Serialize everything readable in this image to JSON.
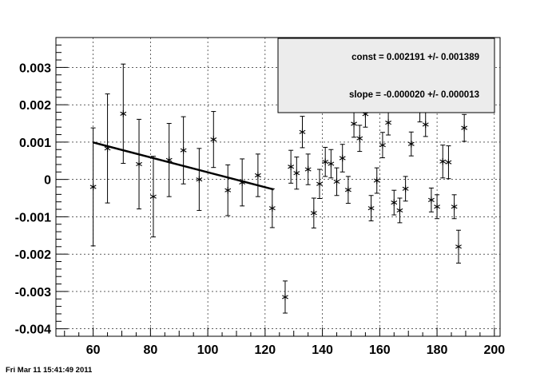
{
  "timestamp": "Fri Mar 11 15:41:49 2011",
  "stats": {
    "const_line": "const = 0.002191 +/- 0.001389",
    "slope_line": "slope = -0.000020 +/- 0.000013"
  },
  "colors": {
    "frame": "#000000",
    "stats_box_fill": "#ececec",
    "grid": "#000000",
    "fit_line": "#000000"
  },
  "chart_data": {
    "type": "scatter",
    "title": "",
    "xlabel": "",
    "ylabel": "",
    "xlim": [
      47,
      202
    ],
    "ylim": [
      -0.0042,
      0.0038
    ],
    "grid": true,
    "marker": "asterisk",
    "error_bars": true,
    "x_ticks": [
      60,
      80,
      100,
      120,
      140,
      160,
      180,
      200
    ],
    "x_tick_labels": [
      "60",
      "80",
      "100",
      "120",
      "140",
      "160",
      "180",
      "200"
    ],
    "y_ticks": [
      0.003,
      0.002,
      0.001,
      0,
      -0.001,
      -0.002,
      -0.003,
      -0.004
    ],
    "y_tick_labels": [
      "0.003",
      "0.002",
      "0.001",
      "0",
      "-0.001",
      "-0.002",
      "-0.003",
      "-0.004"
    ],
    "points": [
      {
        "x": 60,
        "y": -0.0002,
        "err": 0.00158
      },
      {
        "x": 65,
        "y": 0.00083,
        "err": 0.00146
      },
      {
        "x": 70.5,
        "y": 0.00176,
        "err": 0.00133
      },
      {
        "x": 76,
        "y": 0.00041,
        "err": 0.0012
      },
      {
        "x": 81,
        "y": -0.00046,
        "err": 0.00108
      },
      {
        "x": 86.5,
        "y": 0.00052,
        "err": 0.00098
      },
      {
        "x": 91.5,
        "y": 0.00078,
        "err": 0.0009
      },
      {
        "x": 97,
        "y": 0.0,
        "err": 0.00083
      },
      {
        "x": 102,
        "y": 0.00107,
        "err": 0.00075
      },
      {
        "x": 107,
        "y": -0.00029,
        "err": 0.00068
      },
      {
        "x": 112,
        "y": -8e-05,
        "err": 0.00063
      },
      {
        "x": 117.5,
        "y": 0.00011,
        "err": 0.00057
      },
      {
        "x": 122.5,
        "y": -0.00077,
        "err": 0.00052
      },
      {
        "x": 127,
        "y": -0.00315,
        "err": 0.00043
      },
      {
        "x": 129,
        "y": 0.00034,
        "err": 0.00044
      },
      {
        "x": 131,
        "y": 0.00017,
        "err": 0.00043
      },
      {
        "x": 133,
        "y": 0.00127,
        "err": 0.00042
      },
      {
        "x": 135,
        "y": 0.00027,
        "err": 0.00041
      },
      {
        "x": 137,
        "y": -0.0009,
        "err": 0.0004
      },
      {
        "x": 139,
        "y": -0.00012,
        "err": 0.00039
      },
      {
        "x": 141,
        "y": 0.00047,
        "err": 0.00039
      },
      {
        "x": 143,
        "y": 0.00042,
        "err": 0.00038
      },
      {
        "x": 145,
        "y": -6e-05,
        "err": 0.00037
      },
      {
        "x": 147,
        "y": 0.00057,
        "err": 0.00037
      },
      {
        "x": 149,
        "y": -0.00028,
        "err": 0.00036
      },
      {
        "x": 151,
        "y": 0.00149,
        "err": 0.00036
      },
      {
        "x": 153,
        "y": 0.0011,
        "err": 0.00035
      },
      {
        "x": 155,
        "y": 0.00175,
        "err": 0.00035
      },
      {
        "x": 157,
        "y": -0.00077,
        "err": 0.00034
      },
      {
        "x": 159,
        "y": -3e-05,
        "err": 0.00034
      },
      {
        "x": 161,
        "y": 0.00092,
        "err": 0.00034
      },
      {
        "x": 163,
        "y": 0.00152,
        "err": 0.00033
      },
      {
        "x": 165,
        "y": -0.00062,
        "err": 0.00033
      },
      {
        "x": 167,
        "y": -0.00083,
        "err": 0.00033
      },
      {
        "x": 169,
        "y": -0.00025,
        "err": 0.00033
      },
      {
        "x": 171,
        "y": 0.00095,
        "err": 0.00032
      },
      {
        "x": 174,
        "y": 0.00186,
        "err": 0.00032
      },
      {
        "x": 176,
        "y": 0.00147,
        "err": 0.00032
      },
      {
        "x": 178,
        "y": -0.00055,
        "err": 0.00032
      },
      {
        "x": 180,
        "y": -0.00073,
        "err": 0.00032
      },
      {
        "x": 182,
        "y": 0.00048,
        "err": 0.00044
      },
      {
        "x": 184,
        "y": 0.00046,
        "err": 0.00044
      },
      {
        "x": 186,
        "y": -0.00073,
        "err": 0.00032
      },
      {
        "x": 187.5,
        "y": -0.0018,
        "err": 0.00044
      },
      {
        "x": 189.5,
        "y": 0.00138,
        "err": 0.00036
      }
    ],
    "fit": {
      "x_start": 60,
      "x_end": 123,
      "const": 0.002191,
      "slope": -2e-05
    }
  }
}
